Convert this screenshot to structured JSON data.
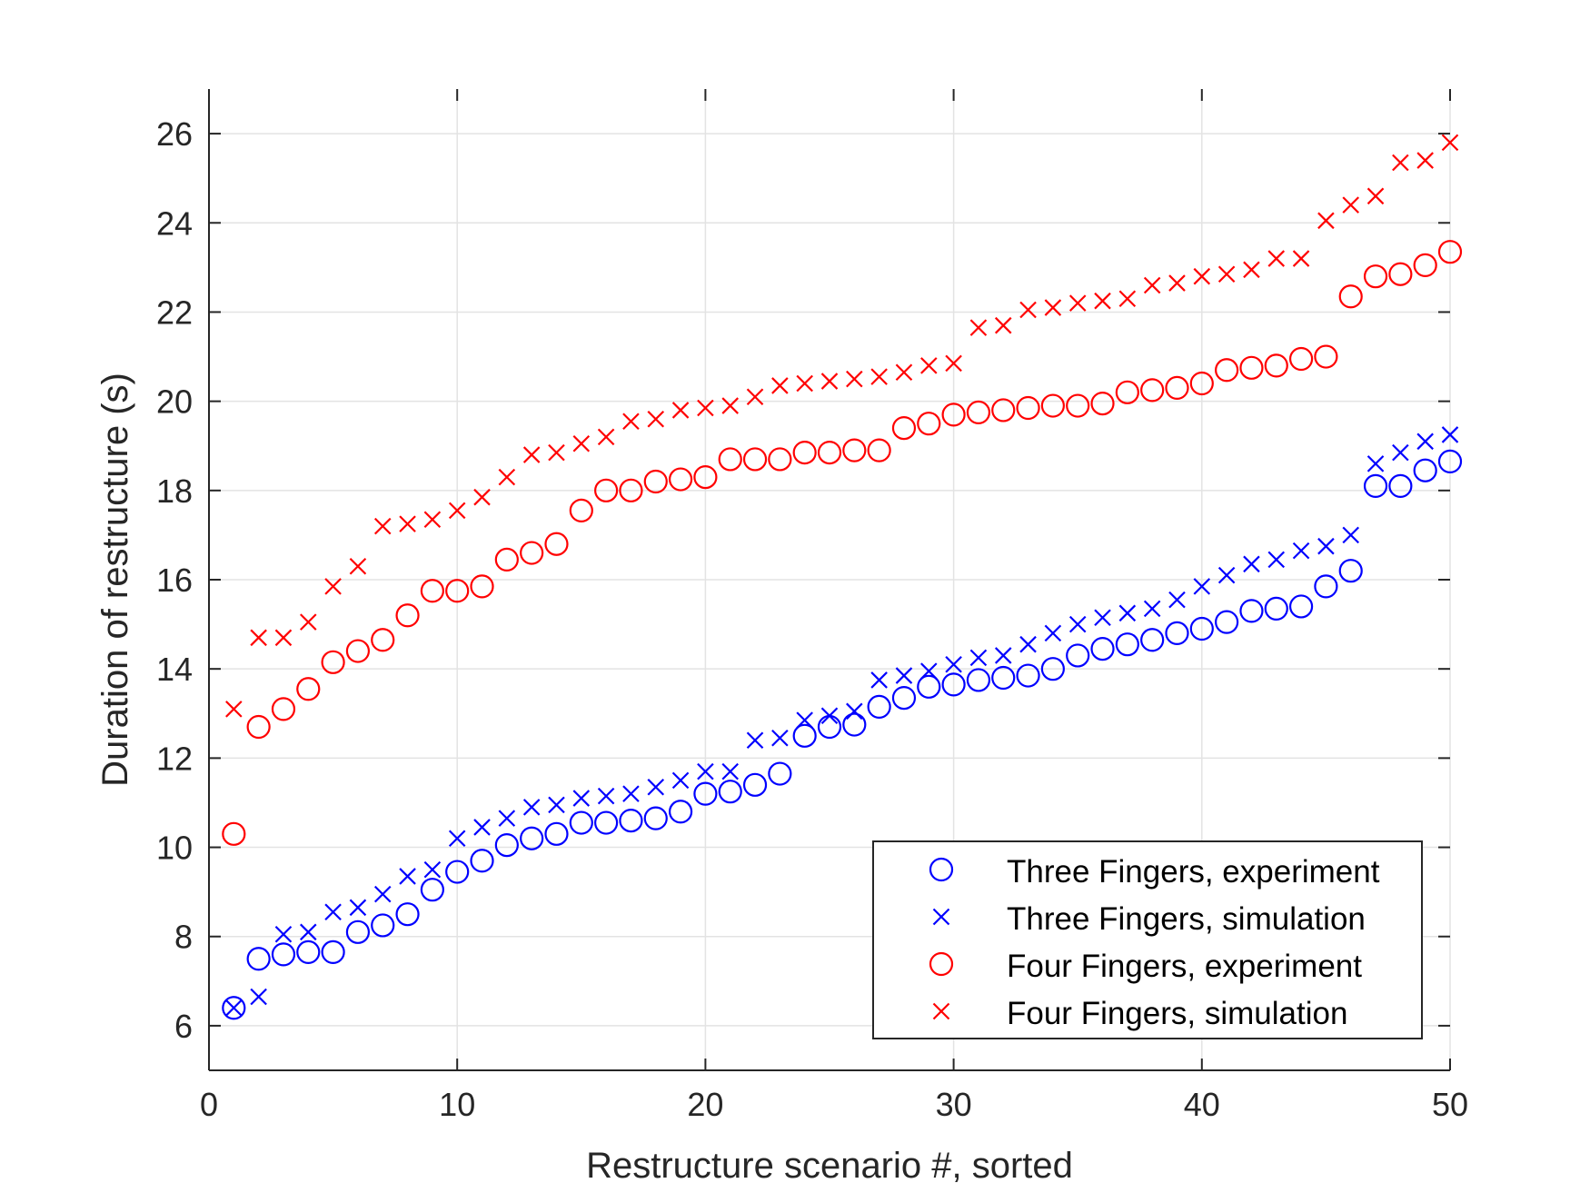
{
  "chart_data": {
    "type": "scatter",
    "xlabel": "Restructure scenario #, sorted",
    "ylabel": "Duration of restructure (s)",
    "xlim": [
      0,
      50
    ],
    "ylim": [
      5,
      27
    ],
    "xticks": [
      0,
      10,
      20,
      30,
      40,
      50
    ],
    "yticks": [
      6,
      8,
      10,
      12,
      14,
      16,
      18,
      20,
      22,
      24,
      26
    ],
    "grid": true,
    "legend_position": "bottom-right",
    "x": [
      1,
      2,
      3,
      4,
      5,
      6,
      7,
      8,
      9,
      10,
      11,
      12,
      13,
      14,
      15,
      16,
      17,
      18,
      19,
      20,
      21,
      22,
      23,
      24,
      25,
      26,
      27,
      28,
      29,
      30,
      31,
      32,
      33,
      34,
      35,
      36,
      37,
      38,
      39,
      40,
      41,
      42,
      43,
      44,
      45,
      46,
      47,
      48,
      49,
      50
    ],
    "series": [
      {
        "name": "Three Fingers, experiment",
        "color": "#0000ff",
        "marker": "circle",
        "values": [
          6.4,
          7.5,
          7.6,
          7.65,
          7.65,
          8.1,
          8.25,
          8.5,
          9.05,
          9.45,
          9.7,
          10.05,
          10.2,
          10.3,
          10.55,
          10.55,
          10.6,
          10.65,
          10.8,
          11.2,
          11.25,
          11.4,
          11.65,
          12.5,
          12.7,
          12.75,
          13.15,
          13.35,
          13.6,
          13.65,
          13.75,
          13.8,
          13.85,
          14.0,
          14.3,
          14.45,
          14.55,
          14.65,
          14.8,
          14.9,
          15.05,
          15.3,
          15.35,
          15.4,
          15.85,
          16.2,
          18.1,
          18.1,
          18.45,
          18.65
        ]
      },
      {
        "name": "Three Fingers, simulation",
        "color": "#0000ff",
        "marker": "x",
        "values": [
          6.4,
          6.65,
          8.05,
          8.1,
          8.55,
          8.65,
          8.95,
          9.35,
          9.5,
          10.2,
          10.45,
          10.65,
          10.9,
          10.95,
          11.1,
          11.15,
          11.2,
          11.35,
          11.5,
          11.7,
          11.7,
          12.4,
          12.45,
          12.85,
          12.95,
          13.05,
          13.75,
          13.85,
          13.95,
          14.1,
          14.25,
          14.3,
          14.55,
          14.8,
          15.0,
          15.15,
          15.25,
          15.35,
          15.55,
          15.85,
          16.1,
          16.35,
          16.45,
          16.65,
          16.75,
          17.0,
          18.6,
          18.85,
          19.1,
          19.25
        ]
      },
      {
        "name": "Four Fingers, experiment",
        "color": "#ff0000",
        "marker": "circle",
        "values": [
          10.3,
          12.7,
          13.1,
          13.55,
          14.15,
          14.4,
          14.65,
          15.2,
          15.75,
          15.75,
          15.85,
          16.45,
          16.6,
          16.8,
          17.55,
          18.0,
          18.0,
          18.2,
          18.25,
          18.3,
          18.7,
          18.7,
          18.7,
          18.85,
          18.85,
          18.9,
          18.9,
          19.4,
          19.5,
          19.7,
          19.75,
          19.8,
          19.85,
          19.9,
          19.9,
          19.95,
          20.2,
          20.25,
          20.3,
          20.4,
          20.7,
          20.75,
          20.8,
          20.95,
          21.0,
          22.35,
          22.8,
          22.85,
          23.05,
          23.35
        ]
      },
      {
        "name": "Four Fingers, simulation",
        "color": "#ff0000",
        "marker": "x",
        "values": [
          13.1,
          14.7,
          14.7,
          15.05,
          15.85,
          16.3,
          17.2,
          17.25,
          17.35,
          17.55,
          17.85,
          18.3,
          18.8,
          18.85,
          19.05,
          19.2,
          19.55,
          19.6,
          19.8,
          19.85,
          19.9,
          20.1,
          20.35,
          20.4,
          20.45,
          20.5,
          20.55,
          20.65,
          20.8,
          20.85,
          21.65,
          21.7,
          22.05,
          22.1,
          22.2,
          22.25,
          22.3,
          22.6,
          22.65,
          22.8,
          22.85,
          22.95,
          23.2,
          23.2,
          24.05,
          24.4,
          24.6,
          25.35,
          25.4,
          25.8
        ]
      }
    ]
  }
}
